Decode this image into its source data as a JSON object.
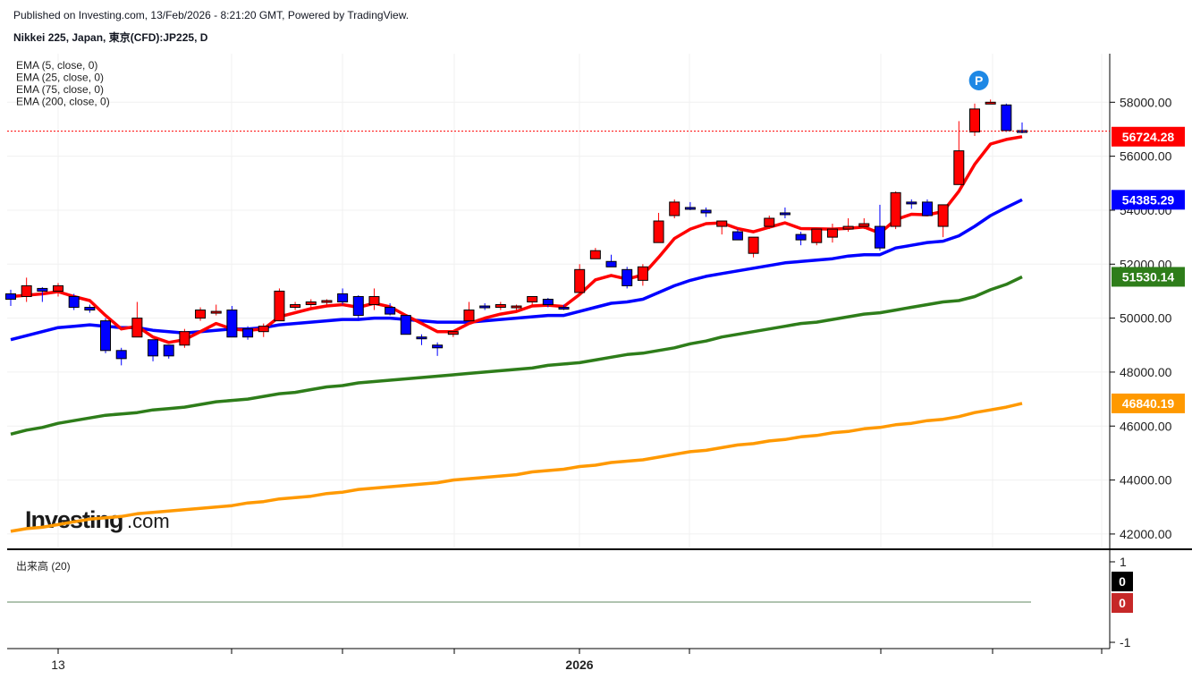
{
  "header": {
    "published": "Published on Investing.com, 13/Feb/2026 - 8:21:20 GMT, Powered by TradingView.",
    "instrument": "Nikkei 225, Japan, 東京(CFD):JP225, D"
  },
  "logo": {
    "brand": "Investing",
    "suffix": ".com"
  },
  "colors": {
    "bull": "#ff0000",
    "bear": "#0000ff",
    "ema5": "#ff0000",
    "ema25": "#0000ff",
    "ema75": "#2e7d1a",
    "ema200": "#ff9900",
    "last_price_line": "#ff0000"
  },
  "chart_data": [
    {
      "type": "candlestick",
      "ylim": [
        41500,
        59800
      ],
      "y_ticks": [
        "42000.00",
        "44000.00",
        "46000.00",
        "48000.00",
        "50000.00",
        "52000.00",
        "54000.00",
        "56000.00",
        "58000.00"
      ],
      "x_labels": [
        "13",
        "2026"
      ],
      "legend": [
        "EMA (5, close, 0)",
        "EMA (25, close, 0)",
        "EMA (75, close, 0)",
        "EMA (200, close, 0)"
      ],
      "marker": "P",
      "last_price": {
        "value": "56927.00",
        "color": "#ff0000",
        "text_color": "#ff0000"
      },
      "price_badges": [
        {
          "value": "56724.28",
          "color": "#ff0000"
        },
        {
          "value": "54385.29",
          "color": "#0000ff"
        },
        {
          "value": "51530.14",
          "color": "#2e7d1a"
        },
        {
          "value": "46840.19",
          "color": "#ff9900"
        }
      ],
      "candles": [
        [
          50900,
          51050,
          50450,
          50700
        ],
        [
          50800,
          51500,
          50600,
          51200
        ],
        [
          51100,
          51150,
          50600,
          51000
        ],
        [
          51000,
          51300,
          50800,
          51200
        ],
        [
          50800,
          50900,
          50300,
          50400
        ],
        [
          50400,
          50500,
          50200,
          50300
        ],
        [
          49900,
          50000,
          48700,
          48800
        ],
        [
          48800,
          48900,
          48250,
          48500
        ],
        [
          49300,
          50600,
          49300,
          50000
        ],
        [
          49200,
          49200,
          48400,
          48600
        ],
        [
          49000,
          49000,
          48500,
          48600
        ],
        [
          49000,
          49600,
          48900,
          49500
        ],
        [
          50000,
          50400,
          49900,
          50300
        ],
        [
          50200,
          50500,
          50100,
          50250
        ],
        [
          50300,
          50450,
          49300,
          49300
        ],
        [
          49600,
          49700,
          49200,
          49300
        ],
        [
          49500,
          49800,
          49300,
          49700
        ],
        [
          49900,
          51100,
          49900,
          51000
        ],
        [
          50400,
          50600,
          50300,
          50500
        ],
        [
          50500,
          50700,
          50400,
          50600
        ],
        [
          50600,
          50700,
          50500,
          50650
        ],
        [
          50900,
          51100,
          50500,
          50600
        ],
        [
          50800,
          50850,
          49900,
          50100
        ],
        [
          50500,
          51100,
          50300,
          50800
        ],
        [
          50400,
          50550,
          50100,
          50150
        ],
        [
          50100,
          50100,
          49400,
          49400
        ],
        [
          49300,
          49400,
          49000,
          49250
        ],
        [
          49000,
          49100,
          48600,
          48900
        ],
        [
          49400,
          49500,
          49300,
          49500
        ],
        [
          49900,
          50600,
          49900,
          50300
        ],
        [
          50450,
          50550,
          50300,
          50400
        ],
        [
          50400,
          50600,
          50300,
          50500
        ],
        [
          50400,
          50500,
          50300,
          50450
        ],
        [
          50600,
          50800,
          50500,
          50800
        ],
        [
          50700,
          50750,
          50400,
          50500
        ],
        [
          50400,
          50500,
          50300,
          50350
        ],
        [
          50950,
          52000,
          50950,
          51800
        ],
        [
          52200,
          52600,
          52200,
          52500
        ],
        [
          52100,
          52350,
          51900,
          51900
        ],
        [
          51800,
          51900,
          51100,
          51200
        ],
        [
          51400,
          52000,
          51200,
          51900
        ],
        [
          52800,
          53900,
          52800,
          53600
        ],
        [
          53800,
          54400,
          53700,
          54300
        ],
        [
          54100,
          54300,
          54000,
          54050
        ],
        [
          54000,
          54100,
          53750,
          53900
        ],
        [
          53400,
          53600,
          53100,
          53600
        ],
        [
          53200,
          53300,
          52900,
          52900
        ],
        [
          52400,
          53000,
          52250,
          53000
        ],
        [
          53400,
          53800,
          53300,
          53700
        ],
        [
          53900,
          54100,
          53700,
          53850
        ],
        [
          53100,
          53200,
          52700,
          52900
        ],
        [
          52800,
          53200,
          52700,
          53300
        ],
        [
          53000,
          53500,
          52800,
          53300
        ],
        [
          53300,
          53700,
          53200,
          53400
        ],
        [
          53400,
          53700,
          53300,
          53500
        ],
        [
          53400,
          54200,
          52500,
          52600
        ],
        [
          53400,
          54700,
          53300,
          54650
        ],
        [
          54300,
          54400,
          54050,
          54250
        ],
        [
          54300,
          54400,
          53800,
          53800
        ],
        [
          53400,
          54200,
          53000,
          54200
        ],
        [
          54950,
          57300,
          54950,
          56200
        ],
        [
          56900,
          57950,
          56750,
          57750
        ],
        [
          57950,
          58100,
          57950,
          58000
        ],
        [
          57900,
          57950,
          56900,
          56950
        ],
        [
          56950,
          57250,
          56850,
          56927
        ]
      ],
      "ema5": [
        50800,
        50850,
        50900,
        50980,
        50800,
        50650,
        50100,
        49600,
        49700,
        49300,
        49100,
        49200,
        49500,
        49800,
        49600,
        49550,
        49600,
        50050,
        50200,
        50350,
        50450,
        50500,
        50400,
        50550,
        50420,
        50100,
        49800,
        49500,
        49500,
        49800,
        50000,
        50150,
        50250,
        50450,
        50480,
        50430,
        50880,
        51420,
        51580,
        51450,
        51600,
        52250,
        52950,
        53300,
        53500,
        53530,
        53320,
        53200,
        53370,
        53530,
        53320,
        53310,
        53300,
        53330,
        53380,
        53150,
        53650,
        53850,
        53830,
        53950,
        54700,
        55700,
        56450,
        56620,
        56724
      ],
      "ema25": [
        49200,
        49350,
        49500,
        49650,
        49700,
        49750,
        49700,
        49650,
        49650,
        49550,
        49500,
        49450,
        49500,
        49550,
        49600,
        49600,
        49650,
        49750,
        49800,
        49850,
        49900,
        49950,
        49950,
        50000,
        50000,
        49950,
        49900,
        49850,
        49850,
        49850,
        49900,
        49950,
        50000,
        50050,
        50100,
        50100,
        50250,
        50400,
        50550,
        50600,
        50700,
        50950,
        51200,
        51400,
        51550,
        51650,
        51750,
        51850,
        51950,
        52050,
        52100,
        52150,
        52200,
        52300,
        52350,
        52350,
        52600,
        52700,
        52800,
        52850,
        53050,
        53400,
        53800,
        54100,
        54385
      ],
      "ema75": [
        45700,
        45850,
        45950,
        46100,
        46200,
        46300,
        46400,
        46450,
        46500,
        46600,
        46650,
        46700,
        46800,
        46900,
        46950,
        47000,
        47100,
        47200,
        47250,
        47350,
        47450,
        47500,
        47600,
        47650,
        47700,
        47750,
        47800,
        47850,
        47900,
        47950,
        48000,
        48050,
        48100,
        48150,
        48250,
        48300,
        48350,
        48450,
        48550,
        48650,
        48700,
        48800,
        48900,
        49050,
        49150,
        49300,
        49400,
        49500,
        49600,
        49700,
        49800,
        49850,
        49950,
        50050,
        50150,
        50200,
        50300,
        50400,
        50500,
        50600,
        50650,
        50800,
        51050,
        51250,
        51530
      ],
      "ema200": [
        42100,
        42200,
        42250,
        42350,
        42450,
        42550,
        42600,
        42650,
        42750,
        42800,
        42850,
        42900,
        42950,
        43000,
        43050,
        43150,
        43200,
        43300,
        43350,
        43400,
        43500,
        43550,
        43650,
        43700,
        43750,
        43800,
        43850,
        43900,
        44000,
        44050,
        44100,
        44150,
        44200,
        44300,
        44350,
        44400,
        44500,
        44550,
        44650,
        44700,
        44750,
        44850,
        44950,
        45050,
        45100,
        45200,
        45300,
        45350,
        45450,
        45500,
        45600,
        45650,
        45750,
        45800,
        45900,
        45950,
        46050,
        46100,
        46200,
        46250,
        46350,
        46500,
        46600,
        46700,
        46840
      ]
    },
    {
      "type": "bar",
      "title": "出来高 (20)",
      "ylim": [
        -1,
        1
      ],
      "y_ticks": [
        "1",
        "-1"
      ],
      "badges": [
        {
          "value": "0",
          "color": "#000000"
        },
        {
          "value": "0",
          "color": "#c62828"
        }
      ],
      "values": [
        0
      ]
    }
  ]
}
